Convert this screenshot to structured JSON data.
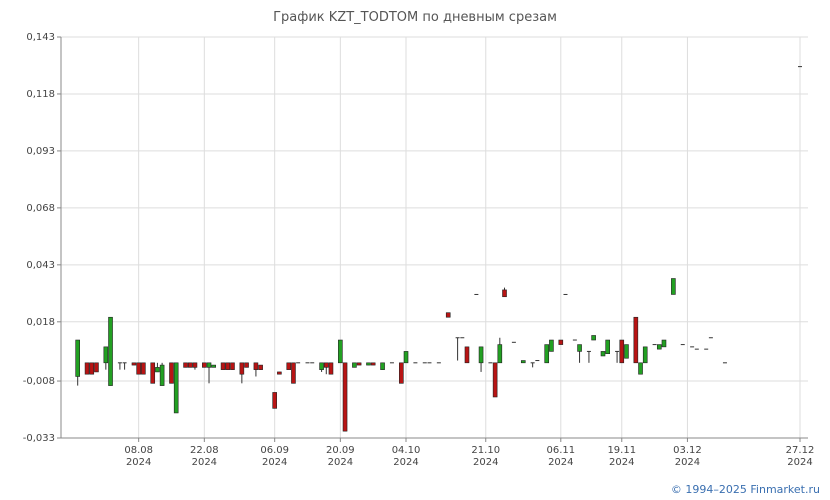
{
  "header": {
    "title": "График KZT_TODTOM по дневным срезам"
  },
  "footer": {
    "copyright": "© 1994–2025 Finmarket.ru"
  },
  "chart_data": {
    "type": "candlestick",
    "title": "График KZT_TODTOM по дневным срезам",
    "xlabel": "",
    "ylabel": "",
    "ylim": [
      -0.033,
      0.143
    ],
    "y_ticks": [
      "0,143",
      "0,118",
      "0,093",
      "0,068",
      "0,043",
      "0,018",
      "-0,008",
      "-0,033"
    ],
    "y_tick_values": [
      0.143,
      0.118,
      0.093,
      0.068,
      0.043,
      0.018,
      -0.008,
      -0.033
    ],
    "x_tick_labels": [
      {
        "date": "08.08",
        "year": "2024",
        "day": 38
      },
      {
        "date": "22.08",
        "year": "2024",
        "day": 52
      },
      {
        "date": "06.09",
        "year": "2024",
        "day": 67
      },
      {
        "date": "20.09",
        "year": "2024",
        "day": 81
      },
      {
        "date": "04.10",
        "year": "2024",
        "day": 95
      },
      {
        "date": "21.10",
        "year": "2024",
        "day": 112
      },
      {
        "date": "06.11",
        "year": "2024",
        "day": 128
      },
      {
        "date": "19.11",
        "year": "2024",
        "day": 141
      },
      {
        "date": "03.12",
        "year": "2024",
        "day": 155
      },
      {
        "date": "27.12",
        "year": "2024",
        "day": 179
      }
    ],
    "x_range_days": [
      24,
      179
    ],
    "colors": {
      "up": "#22a022",
      "down": "#b81414",
      "wick": "#333333",
      "grid": "#dddddd"
    },
    "candles": [
      {
        "day": 25,
        "o": -0.006,
        "c": 0.01,
        "h": 0.01,
        "l": -0.01
      },
      {
        "day": 27,
        "o": 0.0,
        "c": -0.005,
        "h": 0.0,
        "l": -0.005
      },
      {
        "day": 28,
        "o": 0.0,
        "c": -0.005,
        "h": 0.0,
        "l": -0.005
      },
      {
        "day": 29,
        "o": 0.0,
        "c": -0.004,
        "h": 0.0,
        "l": -0.004
      },
      {
        "day": 31,
        "o": 0.0,
        "c": 0.007,
        "h": 0.007,
        "l": -0.003
      },
      {
        "day": 32,
        "o": -0.01,
        "c": 0.02,
        "h": 0.02,
        "l": -0.01
      },
      {
        "day": 34,
        "o": 0.0,
        "c": 0.0,
        "h": 0.0,
        "l": -0.003
      },
      {
        "day": 35,
        "o": 0.0,
        "c": 0.0,
        "h": 0.0,
        "l": -0.003
      },
      {
        "day": 37,
        "o": 0.0,
        "c": -0.001,
        "h": 0.0,
        "l": -0.001
      },
      {
        "day": 38,
        "o": 0.0,
        "c": -0.005,
        "h": 0.0,
        "l": -0.005
      },
      {
        "day": 39,
        "o": 0.0,
        "c": -0.005,
        "h": 0.0,
        "l": -0.005
      },
      {
        "day": 41,
        "o": 0.0,
        "c": -0.009,
        "h": 0.0,
        "l": -0.009
      },
      {
        "day": 42,
        "o": -0.004,
        "c": -0.002,
        "h": 0.0,
        "l": -0.004
      },
      {
        "day": 43,
        "o": -0.01,
        "c": -0.001,
        "h": 0.0,
        "l": -0.01
      },
      {
        "day": 45,
        "o": 0.0,
        "c": -0.009,
        "h": 0.0,
        "l": -0.009
      },
      {
        "day": 46,
        "o": -0.022,
        "c": 0.0,
        "h": 0.0,
        "l": -0.022
      },
      {
        "day": 48,
        "o": 0.0,
        "c": -0.002,
        "h": 0.0,
        "l": -0.002
      },
      {
        "day": 49,
        "o": 0.0,
        "c": -0.002,
        "h": 0.0,
        "l": -0.002
      },
      {
        "day": 50,
        "o": 0.0,
        "c": -0.002,
        "h": 0.0,
        "l": -0.003
      },
      {
        "day": 52,
        "o": 0.0,
        "c": -0.002,
        "h": 0.0,
        "l": -0.002
      },
      {
        "day": 53,
        "o": -0.002,
        "c": 0.0,
        "h": 0.0,
        "l": -0.009
      },
      {
        "day": 54,
        "o": -0.002,
        "c": -0.001,
        "h": -0.001,
        "l": -0.002
      },
      {
        "day": 56,
        "o": 0.0,
        "c": -0.003,
        "h": 0.0,
        "l": -0.003
      },
      {
        "day": 57,
        "o": 0.0,
        "c": -0.003,
        "h": 0.0,
        "l": -0.003
      },
      {
        "day": 58,
        "o": 0.0,
        "c": -0.003,
        "h": 0.0,
        "l": -0.003
      },
      {
        "day": 60,
        "o": 0.0,
        "c": -0.005,
        "h": 0.0,
        "l": -0.009
      },
      {
        "day": 61,
        "o": 0.0,
        "c": -0.002,
        "h": 0.0,
        "l": -0.002
      },
      {
        "day": 63,
        "o": 0.0,
        "c": -0.003,
        "h": 0.0,
        "l": -0.006
      },
      {
        "day": 64,
        "o": -0.001,
        "c": -0.003,
        "h": -0.001,
        "l": -0.003
      },
      {
        "day": 67,
        "o": -0.013,
        "c": -0.02,
        "h": -0.013,
        "l": -0.02
      },
      {
        "day": 68,
        "o": -0.004,
        "c": -0.005,
        "h": -0.004,
        "l": -0.005
      },
      {
        "day": 70,
        "o": 0.0,
        "c": -0.003,
        "h": 0.0,
        "l": -0.003
      },
      {
        "day": 71,
        "o": 0.0,
        "c": -0.009,
        "h": 0.0,
        "l": -0.009
      },
      {
        "day": 72,
        "o": 0.0,
        "c": 0.0,
        "h": 0.0,
        "l": 0.0
      },
      {
        "day": 74,
        "o": 0.0,
        "c": 0.0,
        "h": 0.0,
        "l": 0.0
      },
      {
        "day": 75,
        "o": 0.0,
        "c": 0.0,
        "h": 0.0,
        "l": 0.0
      },
      {
        "day": 77,
        "o": -0.003,
        "c": 0.0,
        "h": 0.0,
        "l": -0.004
      },
      {
        "day": 78,
        "o": 0.0,
        "c": -0.002,
        "h": 0.0,
        "l": -0.005
      },
      {
        "day": 79,
        "o": 0.0,
        "c": -0.005,
        "h": 0.0,
        "l": -0.005
      },
      {
        "day": 81,
        "o": 0.0,
        "c": 0.01,
        "h": 0.01,
        "l": 0.0
      },
      {
        "day": 82,
        "o": 0.0,
        "c": -0.03,
        "h": 0.0,
        "l": -0.03
      },
      {
        "day": 84,
        "o": -0.002,
        "c": 0.0,
        "h": 0.0,
        "l": -0.002
      },
      {
        "day": 85,
        "o": 0.0,
        "c": -0.001,
        "h": 0.0,
        "l": -0.001
      },
      {
        "day": 87,
        "o": -0.001,
        "c": 0.0,
        "h": 0.0,
        "l": -0.001
      },
      {
        "day": 88,
        "o": 0.0,
        "c": -0.001,
        "h": 0.0,
        "l": -0.001
      },
      {
        "day": 90,
        "o": -0.003,
        "c": 0.0,
        "h": 0.0,
        "l": -0.003
      },
      {
        "day": 92,
        "o": 0.0,
        "c": 0.0,
        "h": 0.0,
        "l": 0.0
      },
      {
        "day": 94,
        "o": 0.0,
        "c": -0.009,
        "h": 0.0,
        "l": -0.009
      },
      {
        "day": 95,
        "o": 0.0,
        "c": 0.005,
        "h": 0.005,
        "l": 0.0
      },
      {
        "day": 97,
        "o": 0.0,
        "c": 0.0,
        "h": 0.0,
        "l": 0.0
      },
      {
        "day": 99,
        "o": 0.0,
        "c": 0.0,
        "h": 0.0,
        "l": 0.0
      },
      {
        "day": 100,
        "o": 0.0,
        "c": 0.0,
        "h": 0.0,
        "l": 0.0
      },
      {
        "day": 102,
        "o": 0.0,
        "c": 0.0,
        "h": 0.0,
        "l": 0.0
      },
      {
        "day": 104,
        "o": 0.022,
        "c": 0.02,
        "h": 0.022,
        "l": 0.02
      },
      {
        "day": 106,
        "o": 0.011,
        "c": 0.011,
        "h": 0.011,
        "l": 0.001
      },
      {
        "day": 107,
        "o": 0.011,
        "c": 0.011,
        "h": 0.011,
        "l": 0.011
      },
      {
        "day": 108,
        "o": 0.007,
        "c": 0.0,
        "h": 0.007,
        "l": 0.0
      },
      {
        "day": 110,
        "o": 0.03,
        "c": 0.03,
        "h": 0.03,
        "l": 0.03
      },
      {
        "day": 111,
        "o": 0.0,
        "c": 0.007,
        "h": 0.007,
        "l": -0.004
      },
      {
        "day": 113,
        "o": 0.0,
        "c": 0.0,
        "h": 0.0,
        "l": 0.0
      },
      {
        "day": 114,
        "o": 0.0,
        "c": -0.015,
        "h": 0.0,
        "l": -0.015
      },
      {
        "day": 115,
        "o": 0.0,
        "c": 0.008,
        "h": 0.011,
        "l": 0.0
      },
      {
        "day": 116,
        "o": 0.032,
        "c": 0.029,
        "h": 0.033,
        "l": 0.029
      },
      {
        "day": 118,
        "o": 0.009,
        "c": 0.009,
        "h": 0.009,
        "l": 0.009
      },
      {
        "day": 120,
        "o": 0.0,
        "c": 0.001,
        "h": 0.001,
        "l": 0.0
      },
      {
        "day": 122,
        "o": 0.0,
        "c": 0.0,
        "h": 0.0,
        "l": -0.002
      },
      {
        "day": 123,
        "o": 0.001,
        "c": 0.001,
        "h": 0.001,
        "l": 0.001
      },
      {
        "day": 125,
        "o": 0.0,
        "c": 0.008,
        "h": 0.008,
        "l": 0.0
      },
      {
        "day": 126,
        "o": 0.005,
        "c": 0.01,
        "h": 0.01,
        "l": 0.005
      },
      {
        "day": 128,
        "o": 0.01,
        "c": 0.008,
        "h": 0.01,
        "l": 0.008
      },
      {
        "day": 129,
        "o": 0.03,
        "c": 0.03,
        "h": 0.03,
        "l": 0.03
      },
      {
        "day": 131,
        "o": 0.01,
        "c": 0.01,
        "h": 0.01,
        "l": 0.01
      },
      {
        "day": 132,
        "o": 0.005,
        "c": 0.008,
        "h": 0.008,
        "l": 0.0
      },
      {
        "day": 134,
        "o": 0.005,
        "c": 0.005,
        "h": 0.005,
        "l": 0.0
      },
      {
        "day": 135,
        "o": 0.01,
        "c": 0.012,
        "h": 0.012,
        "l": 0.01
      },
      {
        "day": 137,
        "o": 0.003,
        "c": 0.005,
        "h": 0.005,
        "l": 0.003
      },
      {
        "day": 138,
        "o": 0.004,
        "c": 0.01,
        "h": 0.01,
        "l": 0.004
      },
      {
        "day": 140,
        "o": 0.005,
        "c": 0.005,
        "h": 0.005,
        "l": 0.0
      },
      {
        "day": 141,
        "o": 0.01,
        "c": 0.0,
        "h": 0.01,
        "l": 0.0
      },
      {
        "day": 142,
        "o": 0.002,
        "c": 0.008,
        "h": 0.008,
        "l": 0.002
      },
      {
        "day": 144,
        "o": 0.02,
        "c": 0.0,
        "h": 0.02,
        "l": 0.0
      },
      {
        "day": 145,
        "o": -0.005,
        "c": 0.0,
        "h": 0.0,
        "l": -0.005
      },
      {
        "day": 146,
        "o": 0.0,
        "c": 0.007,
        "h": 0.007,
        "l": 0.0
      },
      {
        "day": 148,
        "o": 0.008,
        "c": 0.008,
        "h": 0.008,
        "l": 0.008
      },
      {
        "day": 149,
        "o": 0.006,
        "c": 0.008,
        "h": 0.008,
        "l": 0.006
      },
      {
        "day": 150,
        "o": 0.007,
        "c": 0.01,
        "h": 0.01,
        "l": 0.007
      },
      {
        "day": 152,
        "o": 0.03,
        "c": 0.037,
        "h": 0.037,
        "l": 0.03
      },
      {
        "day": 154,
        "o": 0.008,
        "c": 0.008,
        "h": 0.008,
        "l": 0.008
      },
      {
        "day": 156,
        "o": 0.007,
        "c": 0.007,
        "h": 0.007,
        "l": 0.007
      },
      {
        "day": 157,
        "o": 0.006,
        "c": 0.006,
        "h": 0.006,
        "l": 0.006
      },
      {
        "day": 159,
        "o": 0.006,
        "c": 0.006,
        "h": 0.006,
        "l": 0.006
      },
      {
        "day": 160,
        "o": 0.011,
        "c": 0.011,
        "h": 0.011,
        "l": 0.011
      },
      {
        "day": 163,
        "o": 0.0,
        "c": 0.0,
        "h": 0.0,
        "l": 0.0
      },
      {
        "day": 179,
        "o": 0.13,
        "c": 0.13,
        "h": 0.13,
        "l": 0.13
      }
    ]
  }
}
